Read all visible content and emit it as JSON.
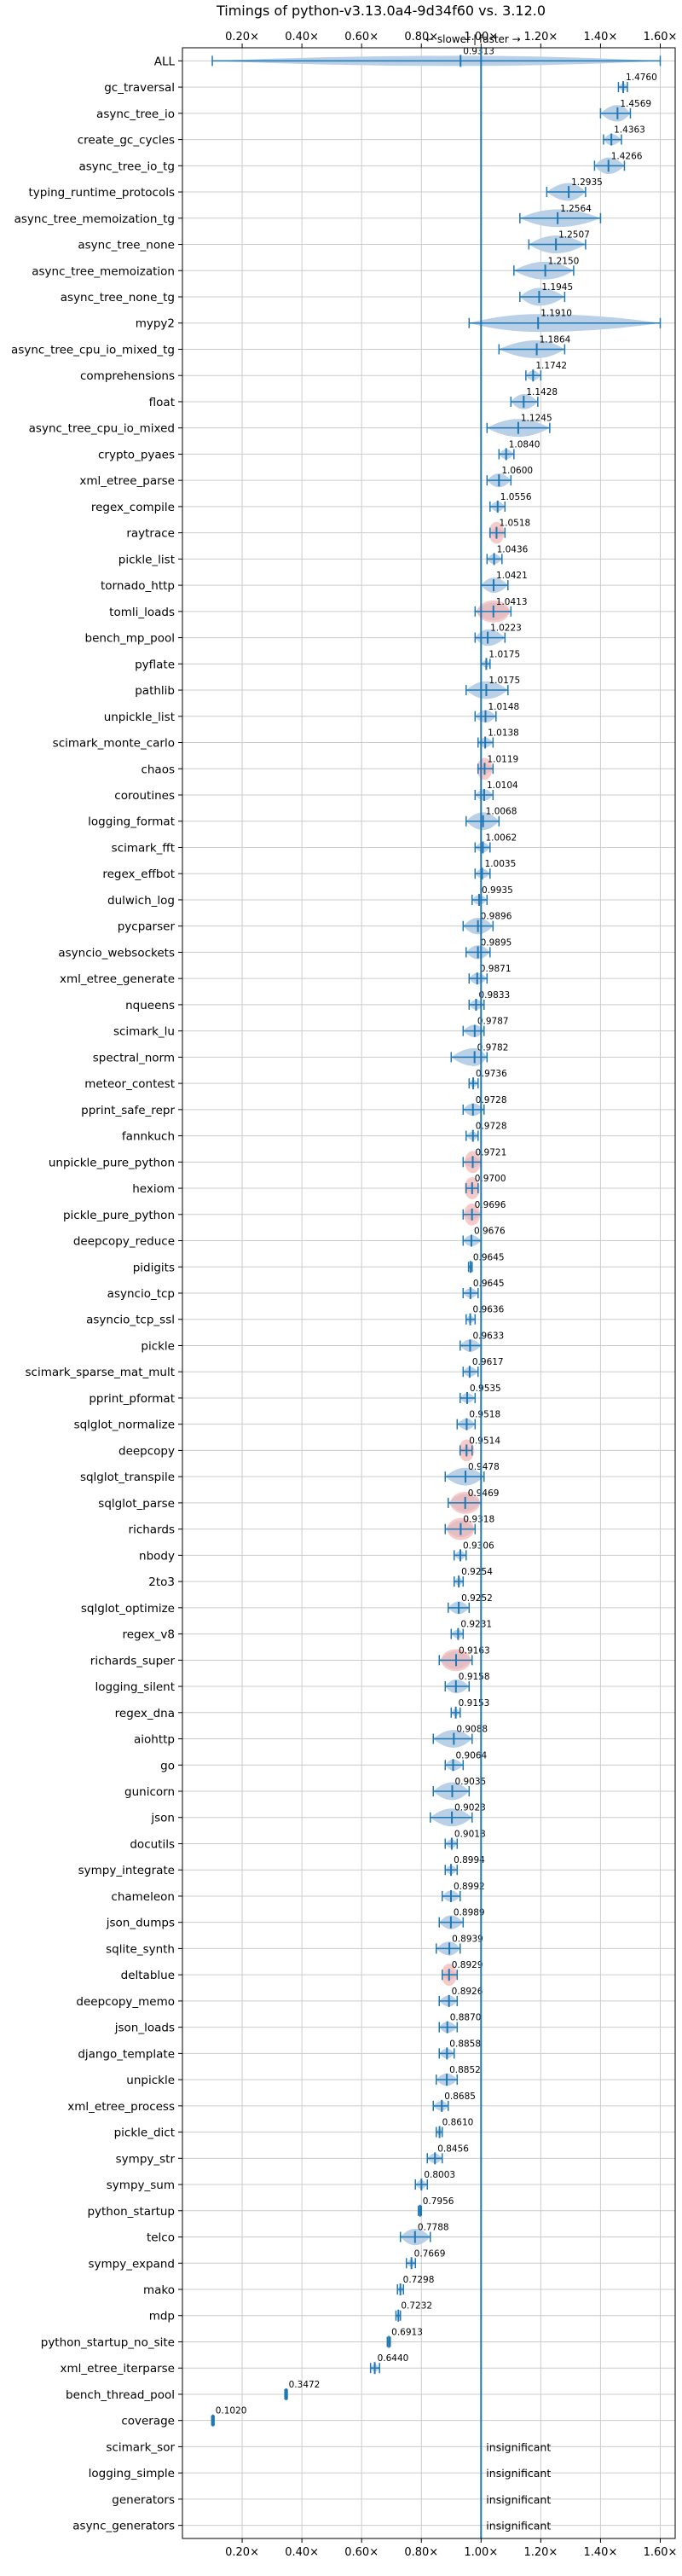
{
  "chart_data": {
    "type": "violin",
    "title": "Timings of python-v3.13.0a4-9d34f60 vs. 3.12.0",
    "direction_labels": {
      "slower": "←  slower",
      "separator": "|",
      "faster": "faster  →"
    },
    "xlim": [
      0.0,
      1.65
    ],
    "xticks": [
      0.2,
      0.4,
      0.6,
      0.8,
      1.0,
      1.2,
      1.4,
      1.6
    ],
    "xtick_labels": [
      "0.20×",
      "0.40×",
      "0.60×",
      "0.80×",
      "1.00×",
      "1.20×",
      "1.40×",
      "1.60×"
    ],
    "reference_line": 1.0,
    "grid": true,
    "colors": {
      "violin": "#b9d0e6",
      "line": "#1f77b4",
      "significant_fill": "#f4b8b8",
      "grid": "#cccccc"
    },
    "insignificant_label": "insignificant",
    "benchmarks": [
      {
        "name": "ALL",
        "value": 0.9313,
        "label": "0.9313",
        "min": 0.1,
        "max": 1.6,
        "wide": true,
        "red": false
      },
      {
        "name": "gc_traversal",
        "value": 1.476,
        "label": "1.4760",
        "min": 1.46,
        "max": 1.49,
        "red": false
      },
      {
        "name": "async_tree_io",
        "value": 1.4569,
        "label": "1.4569",
        "min": 1.4,
        "max": 1.5,
        "red": false
      },
      {
        "name": "create_gc_cycles",
        "value": 1.4363,
        "label": "1.4363",
        "min": 1.41,
        "max": 1.47,
        "red": false
      },
      {
        "name": "async_tree_io_tg",
        "value": 1.4266,
        "label": "1.4266",
        "min": 1.38,
        "max": 1.48,
        "red": false
      },
      {
        "name": "typing_runtime_protocols",
        "value": 1.2935,
        "label": "1.2935",
        "min": 1.22,
        "max": 1.35,
        "red": false
      },
      {
        "name": "async_tree_memoization_tg",
        "value": 1.2564,
        "label": "1.2564",
        "min": 1.13,
        "max": 1.4,
        "red": false
      },
      {
        "name": "async_tree_none",
        "value": 1.2507,
        "label": "1.2507",
        "min": 1.16,
        "max": 1.35,
        "red": false
      },
      {
        "name": "async_tree_memoization",
        "value": 1.215,
        "label": "1.2150",
        "min": 1.11,
        "max": 1.31,
        "red": false
      },
      {
        "name": "async_tree_none_tg",
        "value": 1.1945,
        "label": "1.1945",
        "min": 1.13,
        "max": 1.28,
        "red": false
      },
      {
        "name": "mypy2",
        "value": 1.191,
        "label": "1.1910",
        "min": 0.96,
        "max": 1.6,
        "red": false
      },
      {
        "name": "async_tree_cpu_io_mixed_tg",
        "value": 1.1864,
        "label": "1.1864",
        "min": 1.06,
        "max": 1.28,
        "red": false
      },
      {
        "name": "comprehensions",
        "value": 1.1742,
        "label": "1.1742",
        "min": 1.15,
        "max": 1.2,
        "red": false
      },
      {
        "name": "float",
        "value": 1.1428,
        "label": "1.1428",
        "min": 1.1,
        "max": 1.19,
        "red": false
      },
      {
        "name": "async_tree_cpu_io_mixed",
        "value": 1.1245,
        "label": "1.1245",
        "min": 1.02,
        "max": 1.23,
        "red": false
      },
      {
        "name": "crypto_pyaes",
        "value": 1.084,
        "label": "1.0840",
        "min": 1.06,
        "max": 1.11,
        "red": false
      },
      {
        "name": "xml_etree_parse",
        "value": 1.06,
        "label": "1.0600",
        "min": 1.02,
        "max": 1.1,
        "red": false
      },
      {
        "name": "regex_compile",
        "value": 1.0556,
        "label": "1.0556",
        "min": 1.03,
        "max": 1.08,
        "red": false
      },
      {
        "name": "raytrace",
        "value": 1.0518,
        "label": "1.0518",
        "min": 1.03,
        "max": 1.08,
        "red": true
      },
      {
        "name": "pickle_list",
        "value": 1.0436,
        "label": "1.0436",
        "min": 1.02,
        "max": 1.07,
        "red": false
      },
      {
        "name": "tornado_http",
        "value": 1.0421,
        "label": "1.0421",
        "min": 1.0,
        "max": 1.09,
        "red": false
      },
      {
        "name": "tomli_loads",
        "value": 1.0413,
        "label": "1.0413",
        "min": 0.98,
        "max": 1.1,
        "red": true
      },
      {
        "name": "bench_mp_pool",
        "value": 1.0223,
        "label": "1.0223",
        "min": 0.98,
        "max": 1.08,
        "red": false
      },
      {
        "name": "pyflate",
        "value": 1.0175,
        "label": "1.0175",
        "min": 1.0,
        "max": 1.03,
        "red": false
      },
      {
        "name": "pathlib",
        "value": 1.0175,
        "label": "1.0175",
        "min": 0.95,
        "max": 1.09,
        "red": false
      },
      {
        "name": "unpickle_list",
        "value": 1.0148,
        "label": "1.0148",
        "min": 0.98,
        "max": 1.05,
        "red": false
      },
      {
        "name": "scimark_monte_carlo",
        "value": 1.0138,
        "label": "1.0138",
        "min": 0.99,
        "max": 1.04,
        "red": false
      },
      {
        "name": "chaos",
        "value": 1.0119,
        "label": "1.0119",
        "min": 0.99,
        "max": 1.04,
        "red": true
      },
      {
        "name": "coroutines",
        "value": 1.0104,
        "label": "1.0104",
        "min": 0.98,
        "max": 1.04,
        "red": false
      },
      {
        "name": "logging_format",
        "value": 1.0068,
        "label": "1.0068",
        "min": 0.95,
        "max": 1.06,
        "red": false
      },
      {
        "name": "scimark_fft",
        "value": 1.0062,
        "label": "1.0062",
        "min": 0.98,
        "max": 1.03,
        "red": false
      },
      {
        "name": "regex_effbot",
        "value": 1.0035,
        "label": "1.0035",
        "min": 0.98,
        "max": 1.03,
        "red": false
      },
      {
        "name": "dulwich_log",
        "value": 0.9935,
        "label": "0.9935",
        "min": 0.97,
        "max": 1.02,
        "red": false
      },
      {
        "name": "pycparser",
        "value": 0.9896,
        "label": "0.9896",
        "min": 0.94,
        "max": 1.04,
        "red": false
      },
      {
        "name": "asyncio_websockets",
        "value": 0.9895,
        "label": "0.9895",
        "min": 0.95,
        "max": 1.03,
        "red": false
      },
      {
        "name": "xml_etree_generate",
        "value": 0.9871,
        "label": "0.9871",
        "min": 0.96,
        "max": 1.02,
        "red": false
      },
      {
        "name": "nqueens",
        "value": 0.9833,
        "label": "0.9833",
        "min": 0.96,
        "max": 1.01,
        "red": false
      },
      {
        "name": "scimark_lu",
        "value": 0.9787,
        "label": "0.9787",
        "min": 0.94,
        "max": 1.01,
        "red": false
      },
      {
        "name": "spectral_norm",
        "value": 0.9782,
        "label": "0.9782",
        "min": 0.9,
        "max": 1.02,
        "red": false
      },
      {
        "name": "meteor_contest",
        "value": 0.9736,
        "label": "0.9736",
        "min": 0.96,
        "max": 0.99,
        "red": false
      },
      {
        "name": "pprint_safe_repr",
        "value": 0.9728,
        "label": "0.9728",
        "min": 0.94,
        "max": 1.01,
        "red": false
      },
      {
        "name": "fannkuch",
        "value": 0.9728,
        "label": "0.9728",
        "min": 0.95,
        "max": 0.99,
        "red": false
      },
      {
        "name": "unpickle_pure_python",
        "value": 0.9721,
        "label": "0.9721",
        "min": 0.94,
        "max": 1.0,
        "red": true
      },
      {
        "name": "hexiom",
        "value": 0.97,
        "label": "0.9700",
        "min": 0.95,
        "max": 0.99,
        "red": true
      },
      {
        "name": "pickle_pure_python",
        "value": 0.9696,
        "label": "0.9696",
        "min": 0.94,
        "max": 1.0,
        "red": true
      },
      {
        "name": "deepcopy_reduce",
        "value": 0.9676,
        "label": "0.9676",
        "min": 0.94,
        "max": 1.0,
        "red": false
      },
      {
        "name": "pidigits",
        "value": 0.9645,
        "label": "0.9645",
        "min": 0.958,
        "max": 0.97,
        "red": false
      },
      {
        "name": "asyncio_tcp",
        "value": 0.9645,
        "label": "0.9645",
        "min": 0.94,
        "max": 0.99,
        "red": false
      },
      {
        "name": "asyncio_tcp_ssl",
        "value": 0.9636,
        "label": "0.9636",
        "min": 0.95,
        "max": 0.98,
        "red": false
      },
      {
        "name": "pickle",
        "value": 0.9633,
        "label": "0.9633",
        "min": 0.93,
        "max": 1.0,
        "red": false
      },
      {
        "name": "scimark_sparse_mat_mult",
        "value": 0.9617,
        "label": "0.9617",
        "min": 0.94,
        "max": 0.99,
        "red": false
      },
      {
        "name": "pprint_pformat",
        "value": 0.9535,
        "label": "0.9535",
        "min": 0.93,
        "max": 0.98,
        "red": false
      },
      {
        "name": "sqlglot_normalize",
        "value": 0.9518,
        "label": "0.9518",
        "min": 0.92,
        "max": 0.98,
        "red": false
      },
      {
        "name": "deepcopy",
        "value": 0.9514,
        "label": "0.9514",
        "min": 0.93,
        "max": 0.97,
        "red": true
      },
      {
        "name": "sqlglot_transpile",
        "value": 0.9478,
        "label": "0.9478",
        "min": 0.88,
        "max": 1.01,
        "red": false
      },
      {
        "name": "sqlglot_parse",
        "value": 0.9469,
        "label": "0.9469",
        "min": 0.89,
        "max": 1.0,
        "red": true
      },
      {
        "name": "richards",
        "value": 0.9318,
        "label": "0.9318",
        "min": 0.88,
        "max": 0.98,
        "red": true
      },
      {
        "name": "nbody",
        "value": 0.9306,
        "label": "0.9306",
        "min": 0.91,
        "max": 0.95,
        "red": false
      },
      {
        "name": "2to3",
        "value": 0.9254,
        "label": "0.9254",
        "min": 0.91,
        "max": 0.94,
        "red": false
      },
      {
        "name": "sqlglot_optimize",
        "value": 0.9252,
        "label": "0.9252",
        "min": 0.89,
        "max": 0.96,
        "red": false
      },
      {
        "name": "regex_v8",
        "value": 0.9231,
        "label": "0.9231",
        "min": 0.9,
        "max": 0.94,
        "red": false
      },
      {
        "name": "richards_super",
        "value": 0.9163,
        "label": "0.9163",
        "min": 0.86,
        "max": 0.97,
        "red": true
      },
      {
        "name": "logging_silent",
        "value": 0.9158,
        "label": "0.9158",
        "min": 0.88,
        "max": 0.96,
        "red": false
      },
      {
        "name": "regex_dna",
        "value": 0.9153,
        "label": "0.9153",
        "min": 0.9,
        "max": 0.93,
        "red": false
      },
      {
        "name": "aiohttp",
        "value": 0.9088,
        "label": "0.9088",
        "min": 0.84,
        "max": 0.97,
        "red": false
      },
      {
        "name": "go",
        "value": 0.9064,
        "label": "0.9064",
        "min": 0.88,
        "max": 0.94,
        "red": false
      },
      {
        "name": "gunicorn",
        "value": 0.9035,
        "label": "0.9035",
        "min": 0.84,
        "max": 0.96,
        "red": false
      },
      {
        "name": "json",
        "value": 0.9023,
        "label": "0.9023",
        "min": 0.83,
        "max": 0.97,
        "red": false
      },
      {
        "name": "docutils",
        "value": 0.9018,
        "label": "0.9018",
        "min": 0.88,
        "max": 0.92,
        "red": false
      },
      {
        "name": "sympy_integrate",
        "value": 0.8994,
        "label": "0.8994",
        "min": 0.88,
        "max": 0.92,
        "red": false
      },
      {
        "name": "chameleon",
        "value": 0.8992,
        "label": "0.8992",
        "min": 0.87,
        "max": 0.93,
        "red": false
      },
      {
        "name": "json_dumps",
        "value": 0.8989,
        "label": "0.8989",
        "min": 0.86,
        "max": 0.94,
        "red": false
      },
      {
        "name": "sqlite_synth",
        "value": 0.8939,
        "label": "0.8939",
        "min": 0.85,
        "max": 0.93,
        "red": false
      },
      {
        "name": "deltablue",
        "value": 0.8929,
        "label": "0.8929",
        "min": 0.87,
        "max": 0.92,
        "red": true
      },
      {
        "name": "deepcopy_memo",
        "value": 0.8926,
        "label": "0.8926",
        "min": 0.86,
        "max": 0.92,
        "red": false
      },
      {
        "name": "json_loads",
        "value": 0.887,
        "label": "0.8870",
        "min": 0.86,
        "max": 0.92,
        "red": false
      },
      {
        "name": "django_template",
        "value": 0.8858,
        "label": "0.8858",
        "min": 0.86,
        "max": 0.91,
        "red": false
      },
      {
        "name": "unpickle",
        "value": 0.8852,
        "label": "0.8852",
        "min": 0.85,
        "max": 0.92,
        "red": false
      },
      {
        "name": "xml_etree_process",
        "value": 0.8685,
        "label": "0.8685",
        "min": 0.84,
        "max": 0.89,
        "red": false
      },
      {
        "name": "pickle_dict",
        "value": 0.861,
        "label": "0.8610",
        "min": 0.85,
        "max": 0.87,
        "red": false
      },
      {
        "name": "sympy_str",
        "value": 0.8456,
        "label": "0.8456",
        "min": 0.82,
        "max": 0.87,
        "red": false
      },
      {
        "name": "sympy_sum",
        "value": 0.8003,
        "label": "0.8003",
        "min": 0.78,
        "max": 0.82,
        "red": false
      },
      {
        "name": "python_startup",
        "value": 0.7956,
        "label": "0.7956",
        "min": 0.79,
        "max": 0.8,
        "red": false
      },
      {
        "name": "telco",
        "value": 0.7788,
        "label": "0.7788",
        "min": 0.73,
        "max": 0.83,
        "red": false
      },
      {
        "name": "sympy_expand",
        "value": 0.7669,
        "label": "0.7669",
        "min": 0.75,
        "max": 0.78,
        "red": false
      },
      {
        "name": "mako",
        "value": 0.7298,
        "label": "0.7298",
        "min": 0.72,
        "max": 0.74,
        "red": false
      },
      {
        "name": "mdp",
        "value": 0.7232,
        "label": "0.7232",
        "min": 0.715,
        "max": 0.73,
        "red": false
      },
      {
        "name": "python_startup_no_site",
        "value": 0.6913,
        "label": "0.6913",
        "min": 0.686,
        "max": 0.696,
        "red": false
      },
      {
        "name": "xml_etree_iterparse",
        "value": 0.644,
        "label": "0.6440",
        "min": 0.63,
        "max": 0.66,
        "red": false
      },
      {
        "name": "bench_thread_pool",
        "value": 0.3472,
        "label": "0.3472",
        "min": 0.343,
        "max": 0.351,
        "red": false
      },
      {
        "name": "coverage",
        "value": 0.102,
        "label": "0.1020",
        "min": 0.098,
        "max": 0.106,
        "red": false
      },
      {
        "name": "scimark_sor",
        "value": null,
        "label": "",
        "insignificant": true
      },
      {
        "name": "logging_simple",
        "value": null,
        "label": "",
        "insignificant": true
      },
      {
        "name": "generators",
        "value": null,
        "label": "",
        "insignificant": true
      },
      {
        "name": "async_generators",
        "value": null,
        "label": "",
        "insignificant": true
      }
    ]
  }
}
